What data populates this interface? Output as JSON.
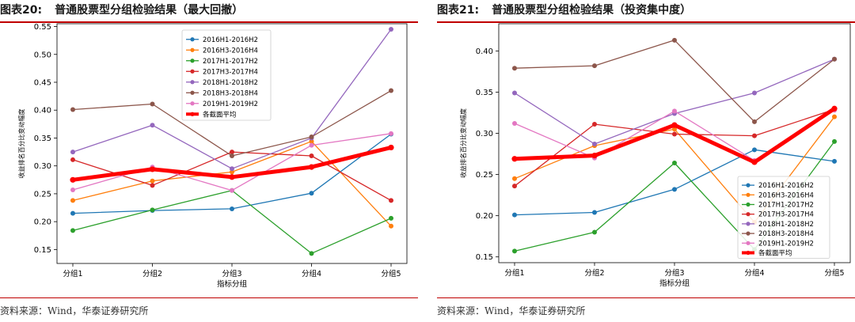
{
  "figures": [
    {
      "number": "图表20:",
      "title": "普通股票型分组检验结果（最大回撤）",
      "source": "资料来源：Wind，华泰证券研究所"
    },
    {
      "number": "图表21:",
      "title": "普通股票型分组检验结果（投资集中度）",
      "source": "资料来源：Wind，华泰证券研究所"
    }
  ],
  "chart_data": [
    {
      "type": "line",
      "title": "",
      "xlabel": "指标分组",
      "ylabel": "收益排名百分比变动幅度",
      "categories": [
        "分组1",
        "分组2",
        "分组3",
        "分组4",
        "分组5"
      ],
      "ylim": [
        0.125,
        0.555
      ],
      "yticks": [
        0.15,
        0.2,
        0.25,
        0.3,
        0.35,
        0.4,
        0.45,
        0.5,
        0.55
      ],
      "legend_position": "top-center",
      "grid": false,
      "series": [
        {
          "name": "2016H1-2016H2",
          "color": "#1f77b4",
          "values": [
            0.215,
            0.22,
            0.223,
            0.251,
            0.357
          ]
        },
        {
          "name": "2016H3-2016H4",
          "color": "#ff7f0e",
          "values": [
            0.238,
            0.273,
            0.289,
            0.344,
            0.192
          ]
        },
        {
          "name": "2017H1-2017H2",
          "color": "#2ca02c",
          "values": [
            0.184,
            0.221,
            0.256,
            0.143,
            0.206
          ]
        },
        {
          "name": "2017H3-2017H4",
          "color": "#d62728",
          "values": [
            0.311,
            0.265,
            0.325,
            0.318,
            0.238
          ]
        },
        {
          "name": "2018H1-2018H2",
          "color": "#9467bd",
          "values": [
            0.325,
            0.373,
            0.295,
            0.35,
            0.545
          ]
        },
        {
          "name": "2018H3-2018H4",
          "color": "#8c564b",
          "values": [
            0.401,
            0.411,
            0.318,
            0.352,
            0.435
          ]
        },
        {
          "name": "2019H1-2019H2",
          "color": "#e377c2",
          "values": [
            0.257,
            0.298,
            0.256,
            0.337,
            0.358
          ]
        },
        {
          "name": "各截面平均",
          "color": "#ff0000",
          "bold": true,
          "values": [
            0.275,
            0.294,
            0.28,
            0.298,
            0.333
          ]
        }
      ]
    },
    {
      "type": "line",
      "title": "",
      "xlabel": "指标分组",
      "ylabel": "收益排名百分比变动幅度",
      "categories": [
        "分组1",
        "分组2",
        "分组3",
        "分组4",
        "分组5"
      ],
      "ylim": [
        0.143,
        0.433
      ],
      "yticks": [
        0.15,
        0.2,
        0.25,
        0.3,
        0.35,
        0.4
      ],
      "legend_position": "lower-right",
      "grid": false,
      "series": [
        {
          "name": "2016H1-2016H2",
          "color": "#1f77b4",
          "values": [
            0.201,
            0.204,
            0.232,
            0.28,
            0.266
          ]
        },
        {
          "name": "2016H3-2016H4",
          "color": "#ff7f0e",
          "values": [
            0.245,
            0.285,
            0.305,
            0.192,
            0.32
          ]
        },
        {
          "name": "2017H1-2017H2",
          "color": "#2ca02c",
          "values": [
            0.157,
            0.18,
            0.264,
            0.159,
            0.29
          ]
        },
        {
          "name": "2017H3-2017H4",
          "color": "#d62728",
          "values": [
            0.236,
            0.311,
            0.299,
            0.297,
            0.329
          ]
        },
        {
          "name": "2018H1-2018H2",
          "color": "#9467bd",
          "values": [
            0.349,
            0.287,
            0.324,
            0.349,
            0.39
          ]
        },
        {
          "name": "2018H3-2018H4",
          "color": "#8c564b",
          "values": [
            0.379,
            0.382,
            0.413,
            0.314,
            0.39
          ]
        },
        {
          "name": "2019H1-2019H2",
          "color": "#e377c2",
          "values": [
            0.312,
            0.27,
            0.327,
            0.267,
            0.328
          ]
        },
        {
          "name": "各截面平均",
          "color": "#ff0000",
          "bold": true,
          "values": [
            0.269,
            0.273,
            0.31,
            0.265,
            0.33
          ]
        }
      ]
    }
  ]
}
